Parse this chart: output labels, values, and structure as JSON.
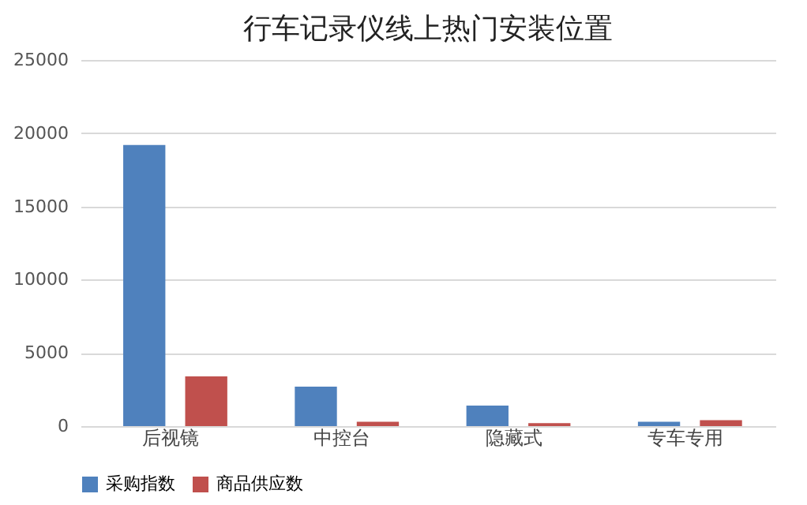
{
  "chart_data": {
    "type": "bar",
    "title": "行车记录仪线上热门安装位置",
    "categories": [
      "后视镜",
      "中控台",
      "隐藏式",
      "专车专用"
    ],
    "series": [
      {
        "name": "采购指数",
        "color": "#4f81bd",
        "values": [
          19200,
          2700,
          1400,
          300
        ]
      },
      {
        "name": "商品供应数",
        "color": "#c0504d",
        "values": [
          3400,
          300,
          200,
          400
        ]
      }
    ],
    "ylim": [
      0,
      25000
    ],
    "yticks": [
      0,
      5000,
      10000,
      15000,
      20000,
      25000
    ],
    "grid": "y",
    "legend": "bottom"
  }
}
